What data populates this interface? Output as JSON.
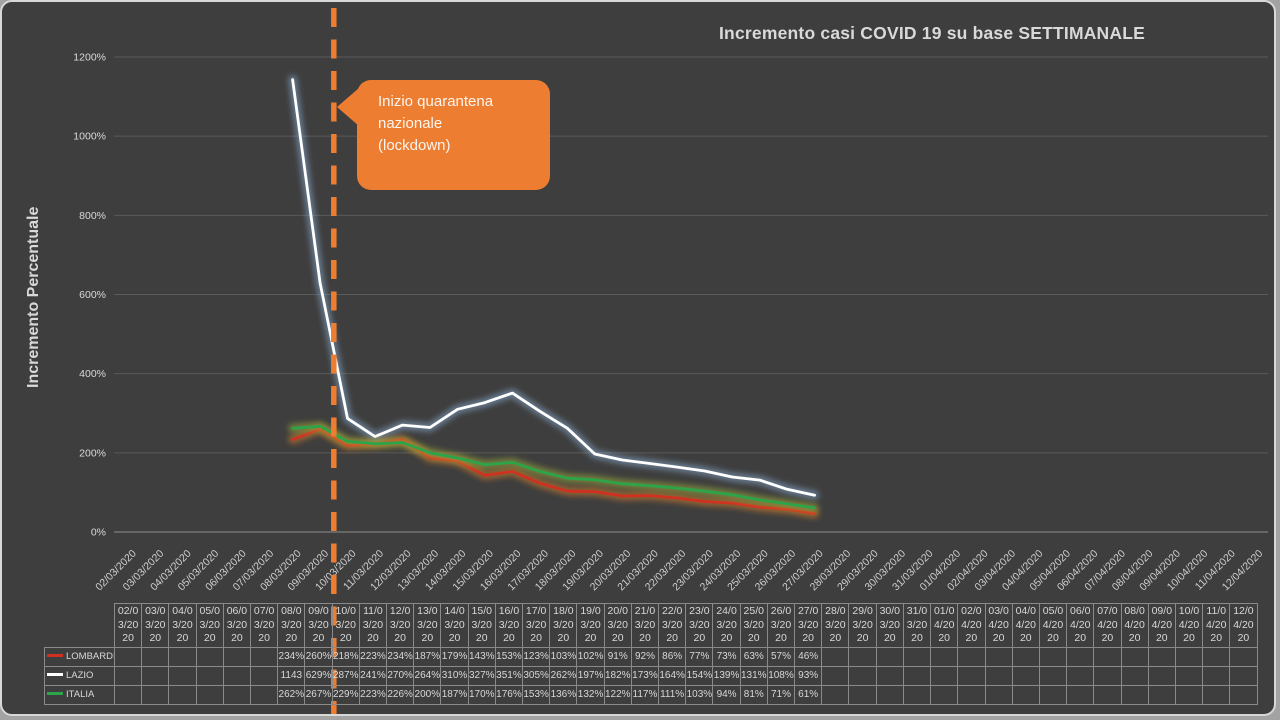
{
  "title": "Incremento casi COVID 19 su base SETTIMANALE",
  "y_axis_label": "Incremento Percentuale",
  "callout": {
    "text": "Inizio quarantena nazionale (lockdown)"
  },
  "colors": {
    "background": "#3E3E3E",
    "frame_border": "#D8D8D8",
    "text": "#D9D9D9",
    "grid": "#5A5A5A",
    "axis": "#7E7E7E",
    "accent_orange": "#ED7D31",
    "table_border": "#8A8A8A"
  },
  "chart_data": {
    "type": "line",
    "title": "Incremento casi COVID 19 su base SETTIMANALE",
    "xlabel": "",
    "ylabel": "Incremento Percentuale",
    "ylim": [
      0,
      1200
    ],
    "y_tick_values": [
      0,
      200,
      400,
      600,
      800,
      1000,
      1200
    ],
    "y_tick_labels": [
      "0%",
      "200%",
      "400%",
      "600%",
      "800%",
      "1000%",
      "1200%"
    ],
    "grid": true,
    "legend_position": "table-left",
    "categories": [
      "02/03/2020",
      "03/03/2020",
      "04/03/2020",
      "05/03/2020",
      "06/03/2020",
      "07/03/2020",
      "08/03/2020",
      "09/03/2020",
      "10/03/2020",
      "11/03/2020",
      "12/03/2020",
      "13/03/2020",
      "14/03/2020",
      "15/03/2020",
      "16/03/2020",
      "17/03/2020",
      "18/03/2020",
      "19/03/2020",
      "20/03/2020",
      "21/03/2020",
      "22/03/2020",
      "23/03/2020",
      "24/03/2020",
      "25/03/2020",
      "26/03/2020",
      "27/03/2020",
      "28/03/2020",
      "29/03/2020",
      "30/03/2020",
      "31/03/2020",
      "01/04/2020",
      "02/04/2020",
      "03/04/2020",
      "04/04/2020",
      "05/04/2020",
      "06/04/2020",
      "07/04/2020",
      "08/04/2020",
      "09/04/2020",
      "10/04/2020",
      "11/04/2020",
      "12/04/2020"
    ],
    "series": [
      {
        "name": "LOMBARDIA",
        "color": "#D03020",
        "glow_color": "#E8862B",
        "values": [
          null,
          null,
          null,
          null,
          null,
          null,
          234,
          260,
          218,
          223,
          234,
          187,
          179,
          143,
          153,
          123,
          103,
          102,
          91,
          92,
          86,
          77,
          73,
          63,
          57,
          46,
          null,
          null,
          null,
          null,
          null,
          null,
          null,
          null,
          null,
          null,
          null,
          null,
          null,
          null,
          null,
          null
        ]
      },
      {
        "name": "LAZIO",
        "color": "#FFFFFF",
        "glow_color": "#8FB4DC",
        "values": [
          null,
          null,
          null,
          null,
          null,
          null,
          1143,
          629,
          287,
          241,
          270,
          264,
          310,
          327,
          351,
          305,
          262,
          197,
          182,
          173,
          164,
          154,
          139,
          131,
          108,
          93,
          null,
          null,
          null,
          null,
          null,
          null,
          null,
          null,
          null,
          null,
          null,
          null,
          null,
          null,
          null,
          null
        ]
      },
      {
        "name": "ITALIA",
        "color": "#2EA44A",
        "glow_color": "#A8BE3A",
        "values": [
          null,
          null,
          null,
          null,
          null,
          null,
          262,
          267,
          229,
          223,
          226,
          200,
          187,
          170,
          176,
          153,
          136,
          132,
          122,
          117,
          111,
          103,
          94,
          81,
          71,
          61,
          null,
          null,
          null,
          null,
          null,
          null,
          null,
          null,
          null,
          null,
          null,
          null,
          null,
          null,
          null,
          null
        ]
      }
    ],
    "annotation": {
      "text": "Inizio quarantena nazionale (lockdown)",
      "line_before_category": "10/03/2020",
      "line_style": "dashed",
      "line_color": "#ED7D31"
    }
  },
  "table": {
    "columns": [
      "02/03/2020",
      "03/03/2020",
      "04/03/2020",
      "05/03/2020",
      "06/03/2020",
      "07/03/2020",
      "08/03/2020",
      "09/03/2020",
      "10/03/2020",
      "11/03/2020",
      "12/03/2020",
      "13/03/2020",
      "14/03/2020",
      "15/03/2020",
      "16/03/2020",
      "17/03/2020",
      "18/03/2020",
      "19/03/2020",
      "20/03/2020",
      "21/03/2020",
      "22/03/2020",
      "23/03/2020",
      "24/03/2020",
      "25/03/2020",
      "26/03/2020",
      "27/03/2020",
      "28/03/2020",
      "29/03/2020",
      "30/03/2020",
      "31/03/2020",
      "01/04/2020",
      "02/04/2020",
      "03/04/2020",
      "04/04/2020",
      "05/04/2020",
      "06/04/2020",
      "07/04/2020",
      "08/04/2020",
      "09/04/2020",
      "10/04/2020",
      "11/04/2020",
      "12/04/2020"
    ],
    "rows": [
      {
        "label": "LOMBARDIA",
        "marker_color": "#D03020",
        "cells": [
          "",
          "",
          "",
          "",
          "",
          "",
          "234%",
          "260%",
          "218%",
          "223%",
          "234%",
          "187%",
          "179%",
          "143%",
          "153%",
          "123%",
          "103%",
          "102%",
          "91%",
          "92%",
          "86%",
          "77%",
          "73%",
          "63%",
          "57%",
          "46%",
          "",
          "",
          "",
          "",
          "",
          "",
          "",
          "",
          "",
          "",
          "",
          "",
          "",
          "",
          "",
          ""
        ]
      },
      {
        "label": "LAZIO",
        "marker_color": "#FFFFFF",
        "cells": [
          "",
          "",
          "",
          "",
          "",
          "",
          "1143",
          "629%",
          "287%",
          "241%",
          "270%",
          "264%",
          "310%",
          "327%",
          "351%",
          "305%",
          "262%",
          "197%",
          "182%",
          "173%",
          "164%",
          "154%",
          "139%",
          "131%",
          "108%",
          "93%",
          "",
          "",
          "",
          "",
          "",
          "",
          "",
          "",
          "",
          "",
          "",
          "",
          "",
          "",
          "",
          ""
        ]
      },
      {
        "label": "ITALIA",
        "marker_color": "#2EA44A",
        "cells": [
          "",
          "",
          "",
          "",
          "",
          "",
          "262%",
          "267%",
          "229%",
          "223%",
          "226%",
          "200%",
          "187%",
          "170%",
          "176%",
          "153%",
          "136%",
          "132%",
          "122%",
          "117%",
          "111%",
          "103%",
          "94%",
          "81%",
          "71%",
          "61%",
          "",
          "",
          "",
          "",
          "",
          "",
          "",
          "",
          "",
          "",
          "",
          "",
          "",
          "",
          "",
          ""
        ]
      }
    ]
  }
}
